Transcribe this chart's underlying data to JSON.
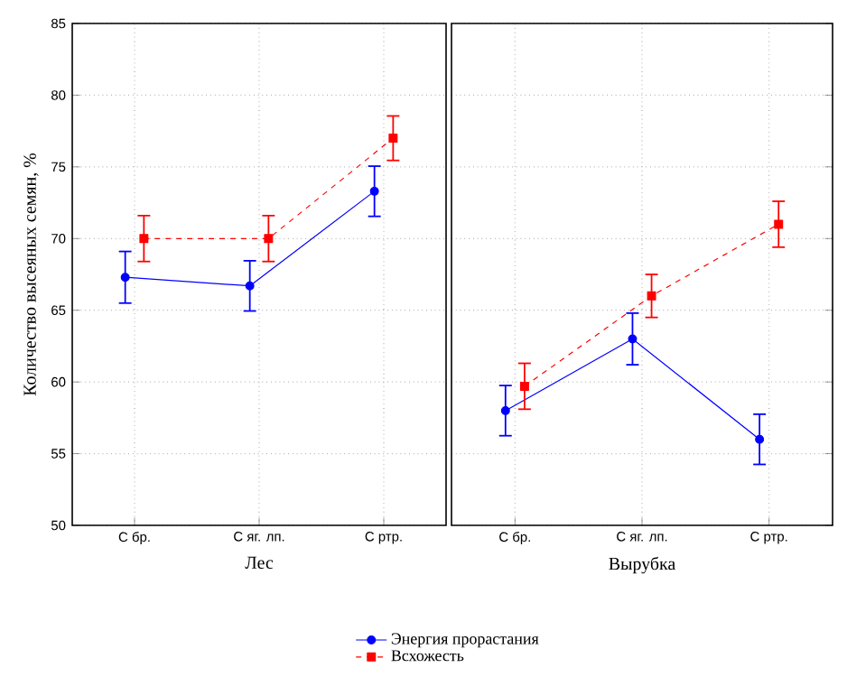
{
  "chart_data": [
    {
      "type": "line",
      "xlabel": "Лес",
      "ylabel": "Количество высеяных семян, %",
      "categories": [
        "С бр.",
        "С яг. лп.",
        "С ртр."
      ],
      "ylim": [
        50,
        85
      ],
      "yticks": [
        50,
        55,
        60,
        65,
        70,
        75,
        80,
        85
      ],
      "grid": true,
      "legend": "bottom",
      "series": [
        {
          "name": "Энергия прорастания",
          "color": "#0000ff",
          "marker": "circle",
          "line_style": "solid",
          "values": [
            67.3,
            66.7,
            73.3
          ],
          "errors": [
            1.8,
            1.75,
            1.75
          ]
        },
        {
          "name": "Всхожесть",
          "color": "#ff0000",
          "marker": "square",
          "line_style": "dashed",
          "values": [
            70.0,
            70.0,
            77.0
          ],
          "errors": [
            1.6,
            1.6,
            1.55
          ]
        }
      ]
    },
    {
      "type": "line",
      "xlabel": "Вырубка",
      "categories": [
        "С бр.",
        "С яг. лп.",
        "С ртр."
      ],
      "ylim": [
        50,
        85
      ],
      "yticks": [
        50,
        55,
        60,
        65,
        70,
        75,
        80,
        85
      ],
      "grid": true,
      "tick_labels": "x",
      "series": [
        {
          "color": "#0000ff",
          "marker": "circle",
          "line_style": "solid",
          "values": [
            58.0,
            63.0,
            56.0
          ],
          "errors": [
            1.75,
            1.8,
            1.75
          ]
        },
        {
          "color": "#ff0000",
          "marker": "square",
          "line_style": "dashed",
          "values": [
            59.7,
            66.0,
            71.0
          ],
          "errors": [
            1.6,
            1.5,
            1.6
          ]
        }
      ]
    }
  ]
}
